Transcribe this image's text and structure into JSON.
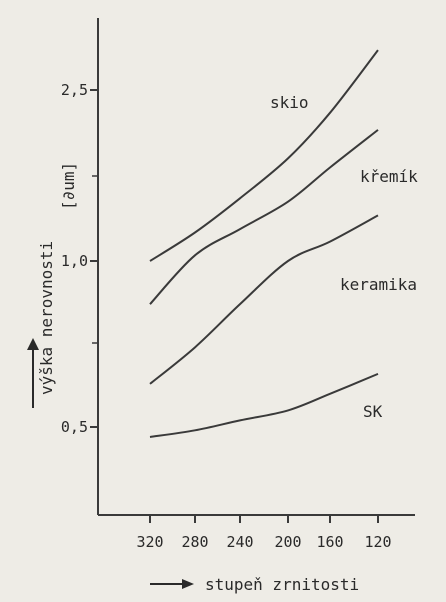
{
  "chart_data": {
    "type": "line",
    "xlabel": "stupeň zrnitosti",
    "ylabel": "výška nerovnosti",
    "ylabel_unit": "[∂um]",
    "x_ticks": [
      "320",
      "280",
      "240",
      "200",
      "160",
      "120"
    ],
    "x_values": [
      320,
      280,
      240,
      200,
      160,
      120
    ],
    "y_ticks": [
      {
        "value": 0.5,
        "label": "0,5"
      },
      {
        "value": 1.0,
        "label": "1,0"
      },
      {
        "value": 2.5,
        "label": "2,5"
      }
    ],
    "series": [
      {
        "name": "skio",
        "x": [
          320,
          280,
          240,
          200,
          160,
          120
        ],
        "values": [
          1.0,
          1.25,
          1.55,
          1.9,
          2.3,
          2.85
        ]
      },
      {
        "name": "křemík",
        "x": [
          320,
          280,
          240,
          200,
          160,
          120
        ],
        "values": [
          0.87,
          1.05,
          1.28,
          1.52,
          1.82,
          2.15
        ]
      },
      {
        "name": "keramika",
        "x": [
          320,
          280,
          240,
          200,
          160,
          120
        ],
        "values": [
          0.63,
          0.74,
          0.87,
          1.0,
          1.17,
          1.4
        ]
      },
      {
        "name": "SK",
        "x": [
          320,
          280,
          240,
          200,
          160,
          120
        ],
        "values": [
          0.47,
          0.49,
          0.52,
          0.55,
          0.6,
          0.66
        ]
      }
    ],
    "colors": {
      "line": "#3a3a3a",
      "background": "#eeece6"
    }
  }
}
